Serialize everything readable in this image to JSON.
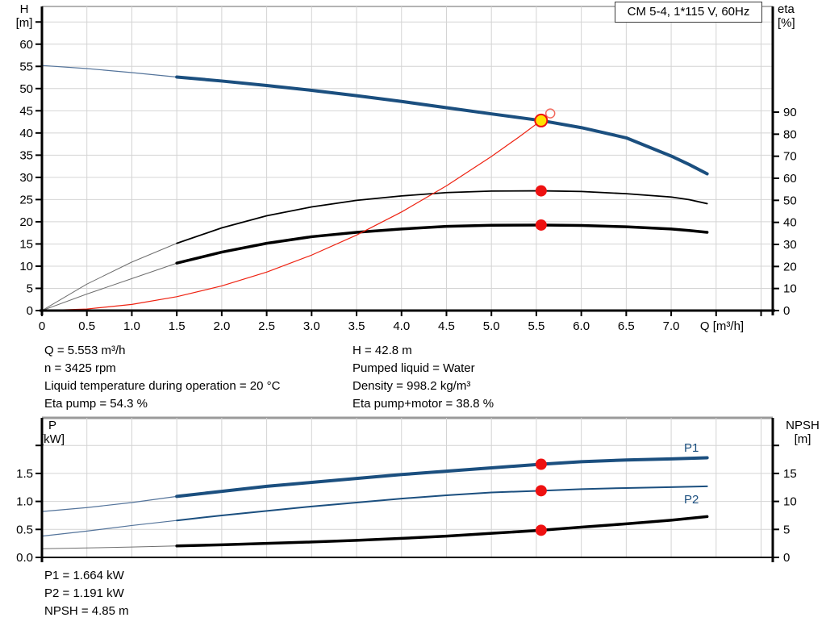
{
  "title_box": "CM 5-4, 1*115 V, 60Hz",
  "labels": {
    "h": "H",
    "h_unit": "[m]",
    "eta": "eta",
    "eta_unit": "[%]",
    "p": "P",
    "p_unit": "[kW]",
    "npsh": "NPSH",
    "npsh_unit": "[m]",
    "q_axis": "Q [m³/h]",
    "p1": "P1",
    "p2": "P2"
  },
  "info_top_left": [
    "Q = 5.553 m³/h",
    "n = 3425 rpm",
    "Liquid temperature during operation = 20 °C",
    "Eta pump = 54.3 %"
  ],
  "info_top_right": [
    "H = 42.8 m",
    "Pumped liquid = Water",
    "Density = 998.2 kg/m³",
    "Eta pump+motor = 38.8 %"
  ],
  "info_bottom": [
    "P1 = 1.664 kW",
    "P2 = 1.191 kW",
    "NPSH = 4.85 m"
  ],
  "colors": {
    "curve_blue": "#1b4f7f",
    "curve_black": "#000000",
    "curve_red": "#ee2211",
    "thin_blue": "#54749b",
    "thin_black": "#6e6e6e",
    "dot_red": "#ee1111",
    "dot_yellow": "#ffe100",
    "ring_red": "#f26a5e",
    "grid": "#d4d4d4",
    "axis": "#000000",
    "border_gray": "#9a9a9a",
    "label_blue": "#1b4f7f"
  },
  "chart_data": [
    {
      "type": "line",
      "title": "QH and efficiency curves",
      "x": {
        "label": "Q [m³/h]",
        "min": 0,
        "max": 8.13,
        "grid_step": 0.5,
        "ticks": [
          {
            "v": 0,
            "t": "0"
          },
          {
            "v": 0.5,
            "t": "0.5"
          },
          {
            "v": 1,
            "t": "1.0"
          },
          {
            "v": 1.5,
            "t": "1.5"
          },
          {
            "v": 2,
            "t": "2.0"
          },
          {
            "v": 2.5,
            "t": "2.5"
          },
          {
            "v": 3,
            "t": "3.0"
          },
          {
            "v": 3.5,
            "t": "3.5"
          },
          {
            "v": 4,
            "t": "4.0"
          },
          {
            "v": 4.5,
            "t": "4.5"
          },
          {
            "v": 5,
            "t": "5.0"
          },
          {
            "v": 5.5,
            "t": "5.5"
          },
          {
            "v": 6,
            "t": "6.0"
          },
          {
            "v": 6.5,
            "t": "6.5"
          },
          {
            "v": 7,
            "t": "7.0"
          },
          {
            "v": 7.5,
            "t": ""
          },
          {
            "v": 8,
            "t": ""
          }
        ]
      },
      "left": {
        "label": "H [m]",
        "min": 0,
        "max": 68.5,
        "ticks": [
          {
            "v": 0,
            "t": "0"
          },
          {
            "v": 5,
            "t": "5"
          },
          {
            "v": 10,
            "t": "10"
          },
          {
            "v": 15,
            "t": "15"
          },
          {
            "v": 20,
            "t": "20"
          },
          {
            "v": 25,
            "t": "25"
          },
          {
            "v": 30,
            "t": "30"
          },
          {
            "v": 35,
            "t": "35"
          },
          {
            "v": 40,
            "t": "40"
          },
          {
            "v": 45,
            "t": "45"
          },
          {
            "v": 50,
            "t": "50"
          },
          {
            "v": 55,
            "t": "55"
          },
          {
            "v": 60,
            "t": "60"
          },
          {
            "v": 65,
            "t": ""
          }
        ],
        "grid": [
          5,
          10,
          15,
          20,
          25,
          30,
          35,
          40,
          45,
          50,
          55,
          60,
          65
        ]
      },
      "right": {
        "label": "eta [%]",
        "min": 0,
        "max": 90,
        "ticks": [
          {
            "v": 0,
            "t": "0"
          },
          {
            "v": 10,
            "t": "10"
          },
          {
            "v": 20,
            "t": "20"
          },
          {
            "v": 30,
            "t": "30"
          },
          {
            "v": 40,
            "t": "40"
          },
          {
            "v": 50,
            "t": "50"
          },
          {
            "v": 60,
            "t": "60"
          },
          {
            "v": 70,
            "t": "70"
          },
          {
            "v": 80,
            "t": "80"
          },
          {
            "v": 90,
            "t": "90"
          }
        ]
      },
      "series": [
        {
          "name": "qh-curve",
          "axis": "left",
          "colorKey": "curve_blue",
          "thinKey": "thin_blue",
          "width": 4,
          "thin_width": 1.2,
          "split_q": 1.5,
          "points": [
            [
              0,
              55.2
            ],
            [
              0.5,
              54.5
            ],
            [
              1,
              53.6
            ],
            [
              1.5,
              52.6
            ],
            [
              2,
              51.7
            ],
            [
              2.5,
              50.7
            ],
            [
              3,
              49.6
            ],
            [
              3.5,
              48.4
            ],
            [
              4,
              47.1
            ],
            [
              4.5,
              45.7
            ],
            [
              5,
              44.3
            ],
            [
              5.553,
              42.8
            ],
            [
              6,
              41.2
            ],
            [
              6.5,
              38.9
            ],
            [
              7,
              34.8
            ],
            [
              7.2,
              32.9
            ],
            [
              7.4,
              30.8
            ]
          ]
        },
        {
          "name": "eta-pump-curve",
          "axis": "right",
          "colorKey": "curve_black",
          "thinKey": "thin_black",
          "width": 1.8,
          "thin_width": 1,
          "split_q": 1.5,
          "points": [
            [
              0,
              0
            ],
            [
              0.5,
              12
            ],
            [
              1,
              22
            ],
            [
              1.5,
              30.5
            ],
            [
              2,
              37.5
            ],
            [
              2.5,
              43
            ],
            [
              3,
              47
            ],
            [
              3.5,
              50
            ],
            [
              4,
              52
            ],
            [
              4.5,
              53.5
            ],
            [
              5,
              54.2
            ],
            [
              5.553,
              54.3
            ],
            [
              6,
              54
            ],
            [
              6.5,
              53
            ],
            [
              7,
              51.5
            ],
            [
              7.2,
              50.3
            ],
            [
              7.4,
              48.5
            ]
          ]
        },
        {
          "name": "eta-pump-motor-curve",
          "axis": "right",
          "colorKey": "curve_black",
          "thinKey": "thin_black",
          "width": 3.5,
          "thin_width": 1,
          "split_q": 1.5,
          "points": [
            [
              0,
              0
            ],
            [
              0.5,
              7.5
            ],
            [
              1,
              14.5
            ],
            [
              1.5,
              21.5
            ],
            [
              2,
              26.5
            ],
            [
              2.5,
              30.5
            ],
            [
              3,
              33.5
            ],
            [
              3.5,
              35.5
            ],
            [
              4,
              37
            ],
            [
              4.5,
              38.2
            ],
            [
              5,
              38.7
            ],
            [
              5.553,
              38.8
            ],
            [
              6,
              38.6
            ],
            [
              6.5,
              38
            ],
            [
              7,
              37
            ],
            [
              7.2,
              36.3
            ],
            [
              7.4,
              35.5
            ]
          ]
        },
        {
          "name": "system-curve",
          "axis": "left",
          "colorKey": "curve_red",
          "thinKey": "curve_red",
          "width": 1.2,
          "thin_width": 1.2,
          "split_q": 0,
          "points": [
            [
              0,
              0
            ],
            [
              0.5,
              0.35
            ],
            [
              1,
              1.39
            ],
            [
              1.5,
              3.12
            ],
            [
              2,
              5.55
            ],
            [
              2.5,
              8.67
            ],
            [
              3,
              12.49
            ],
            [
              3.5,
              17.0
            ],
            [
              4,
              22.2
            ],
            [
              4.5,
              28.1
            ],
            [
              5,
              34.7
            ],
            [
              5.3,
              39.0
            ],
            [
              5.553,
              42.8
            ]
          ]
        }
      ],
      "markers": [
        {
          "shape": "ring",
          "axis": "left",
          "q": 5.655,
          "v": 44.4,
          "r": 5.5
        },
        {
          "shape": "duty",
          "axis": "left",
          "q": 5.553,
          "v": 42.8,
          "r": 7.5
        },
        {
          "shape": "dot",
          "axis": "right",
          "q": 5.553,
          "v": 54.3,
          "r": 7
        },
        {
          "shape": "dot",
          "axis": "right",
          "q": 5.553,
          "v": 38.8,
          "r": 7
        }
      ]
    },
    {
      "type": "line",
      "title": "Power and NPSH curves",
      "x": {
        "label": "",
        "min": 0,
        "max": 8.13,
        "grid_step": 0.5,
        "ticks": []
      },
      "left": {
        "label": "P [kW]",
        "min": 0,
        "max": 2.49,
        "ticks": [
          {
            "v": 0,
            "t": "0.0"
          },
          {
            "v": 0.5,
            "t": "0.5"
          },
          {
            "v": 1,
            "t": "1.0"
          },
          {
            "v": 1.5,
            "t": "1.5"
          },
          {
            "v": 2,
            "t": ""
          }
        ],
        "grid": [
          0.5,
          1,
          1.5,
          2
        ]
      },
      "right": {
        "label": "NPSH [m]",
        "min": 0,
        "max": 24.9,
        "ticks": [
          {
            "v": 0,
            "t": "0"
          },
          {
            "v": 5,
            "t": "5"
          },
          {
            "v": 10,
            "t": "10"
          },
          {
            "v": 15,
            "t": "15"
          },
          {
            "v": 20,
            "t": ""
          }
        ]
      },
      "series": [
        {
          "name": "p1-curve",
          "axis": "left",
          "colorKey": "curve_blue",
          "thinKey": "thin_blue",
          "width": 4,
          "thin_width": 1.2,
          "split_q": 1.5,
          "points": [
            [
              0,
              0.82
            ],
            [
              0.5,
              0.89
            ],
            [
              1,
              0.98
            ],
            [
              1.5,
              1.09
            ],
            [
              2,
              1.18
            ],
            [
              2.5,
              1.27
            ],
            [
              3,
              1.34
            ],
            [
              3.5,
              1.41
            ],
            [
              4,
              1.48
            ],
            [
              4.5,
              1.54
            ],
            [
              5,
              1.6
            ],
            [
              5.553,
              1.664
            ],
            [
              6,
              1.71
            ],
            [
              6.5,
              1.74
            ],
            [
              7,
              1.76
            ],
            [
              7.4,
              1.78
            ]
          ]
        },
        {
          "name": "p2-curve",
          "axis": "left",
          "colorKey": "curve_blue",
          "thinKey": "thin_blue",
          "width": 2,
          "thin_width": 1.2,
          "split_q": 1.5,
          "points": [
            [
              0,
              0.38
            ],
            [
              0.5,
              0.47
            ],
            [
              1,
              0.57
            ],
            [
              1.5,
              0.66
            ],
            [
              2,
              0.75
            ],
            [
              2.5,
              0.83
            ],
            [
              3,
              0.91
            ],
            [
              3.5,
              0.98
            ],
            [
              4,
              1.05
            ],
            [
              4.5,
              1.11
            ],
            [
              5,
              1.16
            ],
            [
              5.553,
              1.191
            ],
            [
              6,
              1.22
            ],
            [
              6.5,
              1.24
            ],
            [
              7,
              1.255
            ],
            [
              7.4,
              1.27
            ]
          ]
        },
        {
          "name": "npsh-curve",
          "axis": "right",
          "colorKey": "curve_black",
          "thinKey": "thin_black",
          "width": 3.5,
          "thin_width": 1,
          "split_q": 1.5,
          "points": [
            [
              0,
              1.55
            ],
            [
              0.5,
              1.7
            ],
            [
              1,
              1.85
            ],
            [
              1.5,
              2.05
            ],
            [
              2,
              2.25
            ],
            [
              2.5,
              2.5
            ],
            [
              3,
              2.75
            ],
            [
              3.5,
              3.05
            ],
            [
              4,
              3.4
            ],
            [
              4.5,
              3.8
            ],
            [
              5,
              4.3
            ],
            [
              5.553,
              4.85
            ],
            [
              6,
              5.4
            ],
            [
              6.5,
              6.0
            ],
            [
              7,
              6.65
            ],
            [
              7.4,
              7.3
            ]
          ]
        }
      ],
      "markers": [
        {
          "shape": "dot",
          "axis": "left",
          "q": 5.553,
          "v": 1.664,
          "r": 7
        },
        {
          "shape": "dot",
          "axis": "left",
          "q": 5.553,
          "v": 1.191,
          "r": 7
        },
        {
          "shape": "dot",
          "axis": "right",
          "q": 5.553,
          "v": 4.85,
          "r": 7
        }
      ]
    }
  ]
}
